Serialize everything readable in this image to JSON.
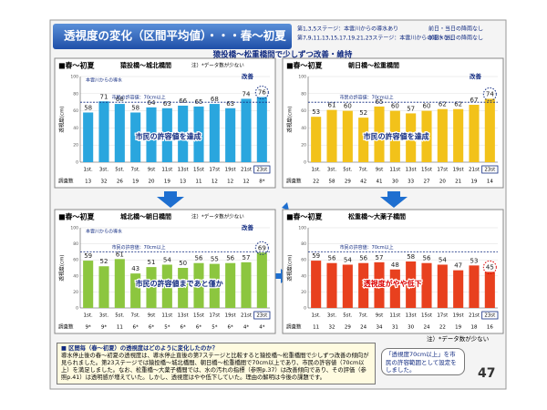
{
  "header": {
    "title": "透視度の変化（区間平均値）・・・春～初夏",
    "notes": [
      {
        "stages": "第1,3,5ステージ：本雲川からの導水あり",
        "weather": "前日・当日の降雨なし"
      },
      {
        "stages": "第7,9,11,13,15,17,19,21,23ステージ：本雲川からの導水なし",
        "weather": "前日・当日の降雨なし"
      }
    ]
  },
  "subtitle": "猿投橋～松重橋間で少しずつ改善・維持",
  "chart_data": [
    {
      "type": "bar",
      "season": "■春～初夏",
      "title": "猿投橋～城北橋間",
      "y_label": "透視度(cm)",
      "color": "#2aa6de",
      "categories": [
        "1st.",
        "3st.",
        "5st.",
        "7st.",
        "9st",
        "11st",
        "13st",
        "15st",
        "17st",
        "19st",
        "21st",
        "23st"
      ],
      "values": [
        58,
        71,
        68,
        58,
        64,
        63,
        66,
        65,
        68,
        63,
        74,
        76
      ],
      "ylim": [
        0,
        100
      ],
      "yticks": [
        0,
        20,
        40,
        60,
        80,
        100
      ],
      "threshold": {
        "value": 70,
        "label": "市民の許容値：70cm以上"
      },
      "counts_label": "調査数",
      "counts": [
        "13",
        "32",
        "26",
        "19",
        "20",
        "19",
        "13",
        "11",
        "12",
        "12",
        "12",
        "8*"
      ],
      "annotation": "市民の許容値を達成",
      "highlight": "改善",
      "inflow": "本雲川からの導水",
      "note": "注）*データ数が少ない"
    },
    {
      "type": "bar",
      "season": "■春～初夏",
      "title": "朝日橋～松重橋間",
      "y_label": "透視度(cm)",
      "color": "#f2c21a",
      "categories": [
        "1st.",
        "3st.",
        "5st.",
        "7st.",
        "9st",
        "11st",
        "13st",
        "15st",
        "17st",
        "19st",
        "21st",
        "23st"
      ],
      "values": [
        53,
        61,
        60,
        52,
        65,
        60,
        57,
        60,
        62,
        62,
        67,
        74
      ],
      "ylim": [
        0,
        100
      ],
      "yticks": [
        0,
        20,
        40,
        60,
        80,
        100
      ],
      "threshold": {
        "value": 70,
        "label": "市民の許容値：70cm以上"
      },
      "counts_label": "調査数",
      "counts": [
        "22",
        "58",
        "29",
        "42",
        "41",
        "30",
        "33",
        "27",
        "20",
        "21",
        "19",
        "14"
      ],
      "annotation": "市民の許容値を達成",
      "highlight": "改善"
    },
    {
      "type": "bar",
      "season": "■春～初夏",
      "title": "城北橋～朝日橋間",
      "y_label": "透視度(cm)",
      "color": "#8cc63f",
      "categories": [
        "1st.",
        "3st.",
        "5st.",
        "7st.",
        "9st",
        "11st",
        "13st",
        "15st",
        "17st",
        "19st",
        "21st",
        "23st"
      ],
      "values": [
        59,
        52,
        61,
        43,
        51,
        54,
        50,
        56,
        55,
        56,
        57,
        69
      ],
      "ylim": [
        0,
        100
      ],
      "yticks": [
        0,
        20,
        40,
        60,
        80,
        100
      ],
      "threshold": {
        "value": 70,
        "label": "市民の許容値：70cm以上"
      },
      "counts_label": "調査数",
      "counts": [
        "9*",
        "9*",
        "11",
        "6*",
        "6*",
        "5*",
        "6*",
        "6*",
        "5*",
        "6*",
        "4*",
        "4*"
      ],
      "annotation": "市民の許容値まであと僅か",
      "highlight": "改善",
      "inflow": "本雲川からの導水",
      "note": "注）*データ数が少ない"
    },
    {
      "type": "bar",
      "season": "■春～初夏",
      "title": "松重橋～大薬子橋間",
      "y_label": "透視度(cm)",
      "color": "#e8401e",
      "categories": [
        "1st.",
        "3st.",
        "5st.",
        "7st.",
        "9st",
        "11st",
        "13st",
        "15st",
        "17st",
        "19st",
        "21st",
        "23st"
      ],
      "values": [
        59,
        56,
        54,
        56,
        57,
        48,
        58,
        56,
        54,
        47,
        53,
        45
      ],
      "ylim": [
        0,
        100
      ],
      "yticks": [
        0,
        20,
        40,
        60,
        80,
        100
      ],
      "threshold": {
        "value": 70,
        "label": "市民の許容値：70cm以上"
      },
      "counts_label": "調査数",
      "counts": [
        "11",
        "32",
        "29",
        "24",
        "34",
        "31",
        "30",
        "24",
        "22",
        "19",
        "18",
        "16"
      ],
      "annotation": "透視度がやや低下"
    }
  ],
  "footnote": "注）*データ数が少ない",
  "summary": {
    "question": "■ 区間毎（春～初夏）の透視度はどのように変化したのか？",
    "body": "導水停止後の春～初夏の透視度は、導水停止直後の第7ステージと比較すると猿投橋～松重橋間で少しずつ改善の傾向が見られました。第23ステージでは猿投橋～城北橋間、朝日橋～松重橋間で70cm以上であり、市民の許容値（70cm以上）を満足しました。なお、松重橋～大薬子橋間では、水の汚れの指標（参照p.37）は改善傾向であり、その評価（参照p.41）は透明感が増えていた。しかし、透視度はやや低下していた。理由の解明は今後の課題です。",
    "bubble": "「透視度70cm以上」を市民の許容範囲として設定をしました。"
  },
  "page_number": "47"
}
